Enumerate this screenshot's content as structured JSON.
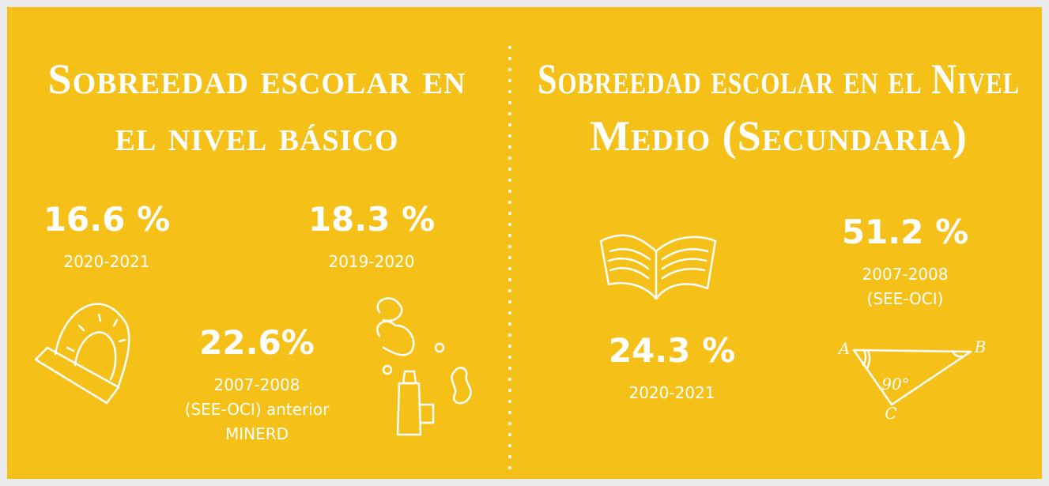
{
  "left": {
    "title": [
      "Sobreedad escolar en",
      "el nivel básico"
    ],
    "stats": [
      {
        "value": "16.6 %",
        "lines": [
          "2020-2021"
        ]
      },
      {
        "value": "18.3 %",
        "lines": [
          "2019-2020"
        ]
      },
      {
        "value": "22.6%",
        "lines": [
          "2007-2008",
          "(SEE-OCI) anterior",
          "MINERD"
        ]
      }
    ]
  },
  "right": {
    "title": [
      "Sobreedad escolar en el Nivel",
      "Medio (Secundaria)"
    ],
    "stats": [
      {
        "value": "51.2 %",
        "lines": [
          "2007-2008",
          "(SEE-OCI)"
        ]
      },
      {
        "value": "24.3 %",
        "lines": [
          "2020-2021"
        ]
      }
    ],
    "triangle_labels": [
      "A",
      "B",
      "90°",
      "C"
    ]
  }
}
